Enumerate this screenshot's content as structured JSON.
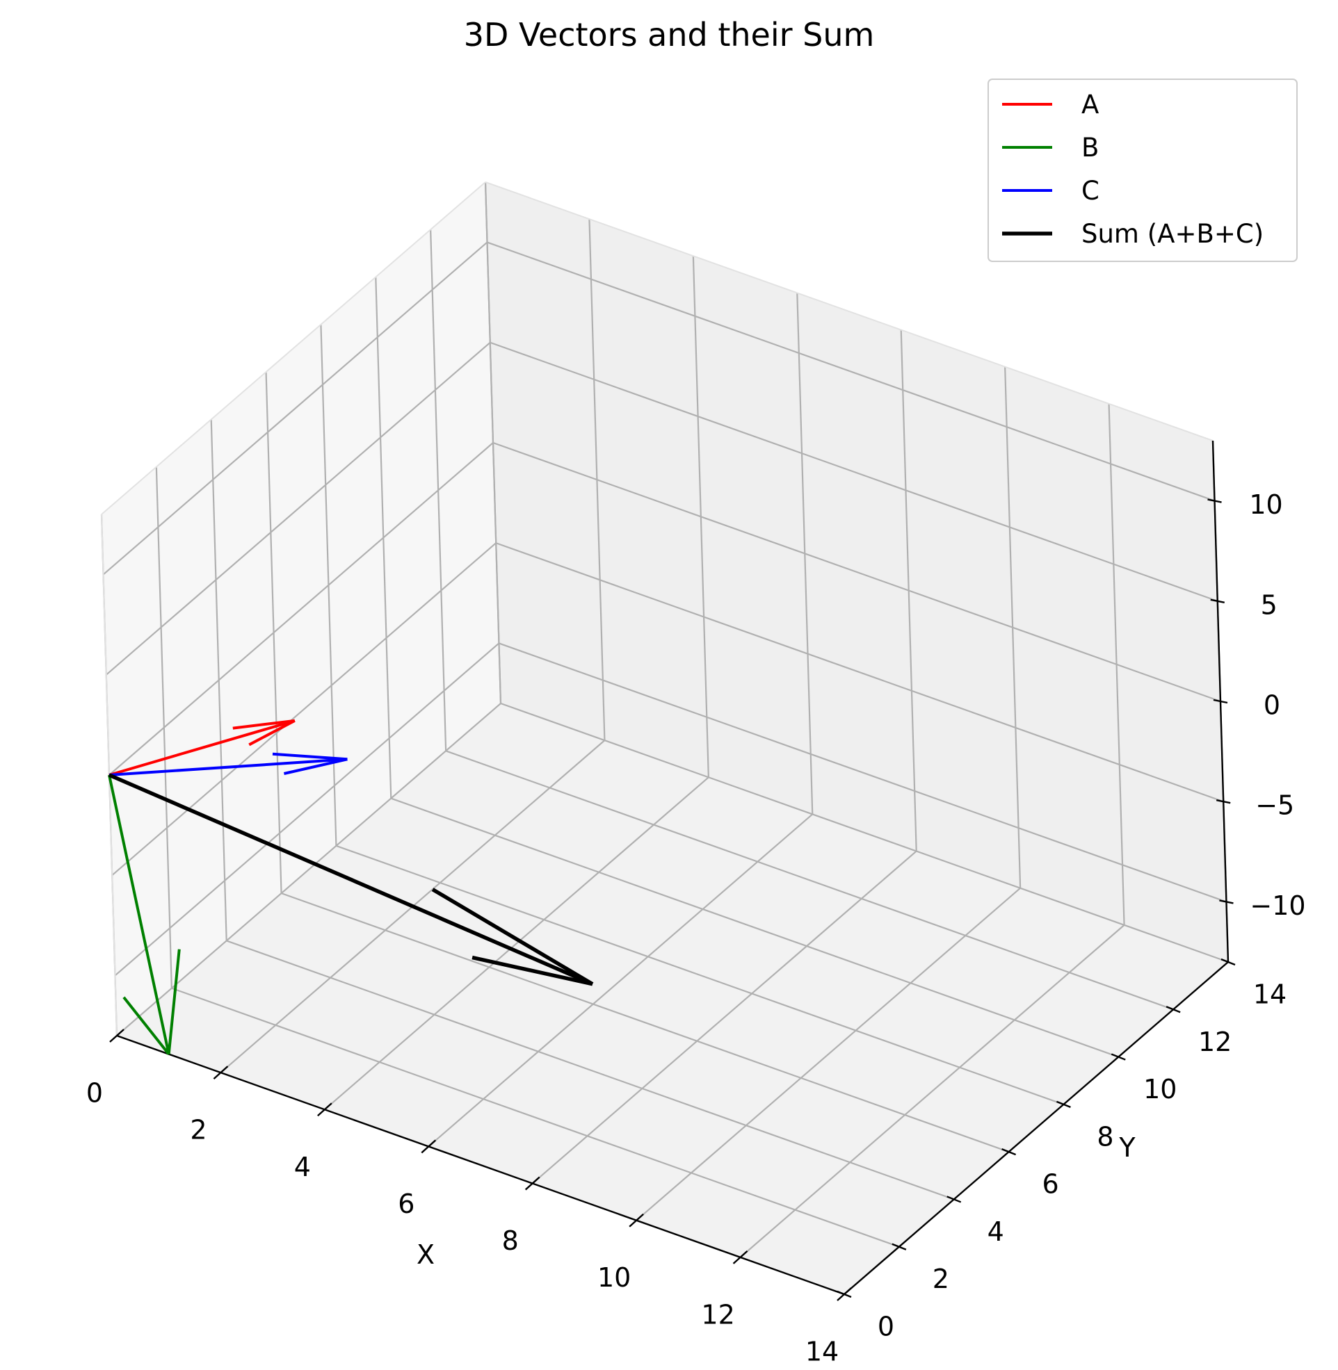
{
  "chart_data": {
    "type": "line",
    "subtype": "3d-vectors",
    "title": "3D Vectors and their Sum",
    "xlabel": "X",
    "ylabel": "Y",
    "zlabel": "",
    "xlim": [
      0,
      14
    ],
    "ylim": [
      0,
      14
    ],
    "zlim": [
      -13,
      13
    ],
    "xticks": [
      "0",
      "2",
      "4",
      "6",
      "8",
      "10",
      "12",
      "14"
    ],
    "yticks": [
      "0",
      "2",
      "4",
      "6",
      "8",
      "10",
      "12",
      "14"
    ],
    "zticks": [
      "−10",
      "−5",
      "0",
      "5",
      "10"
    ],
    "grid": true,
    "legend_position": "top-right",
    "origin": [
      0,
      0,
      0
    ],
    "series": [
      {
        "name": "A",
        "color": "#ff0000",
        "vector": [
          2,
          3,
          1
        ]
      },
      {
        "name": "B",
        "color": "#008000",
        "vector": [
          1,
          0,
          -13
        ]
      },
      {
        "name": "C",
        "color": "#0000ff",
        "vector": [
          3,
          3,
          0
        ]
      },
      {
        "name": "Sum (A+B+C)",
        "color": "#000000",
        "vector": [
          6,
          6,
          -12
        ]
      }
    ]
  }
}
